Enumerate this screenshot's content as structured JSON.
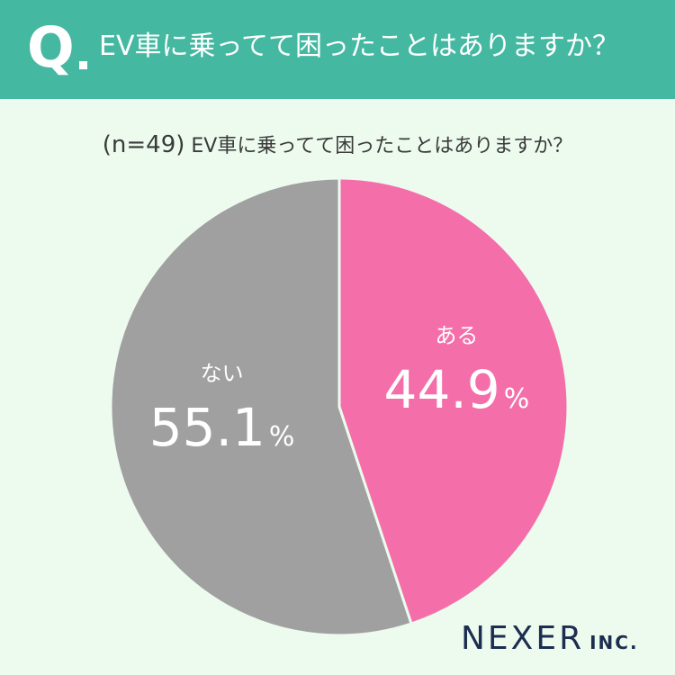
{
  "header": {
    "q_mark": "Q",
    "question": "EV車に乗ってて困ったことはありますか？"
  },
  "subtitle": {
    "n_label": "(n=49)",
    "question": "EV車に乗ってて困ったことはありますか？"
  },
  "chart_data": {
    "type": "pie",
    "title": "EV車に乗ってて困ったことはありますか？",
    "sample_size": 49,
    "unit": "%",
    "slices": [
      {
        "label": "ある",
        "value": 44.9,
        "value_text": "44.9",
        "color": "#f46fa9"
      },
      {
        "label": "ない",
        "value": 55.1,
        "value_text": "55.1",
        "color": "#a0a0a0"
      }
    ]
  },
  "colors": {
    "header_bg": "#45b8a2",
    "page_bg": "#ecfbee",
    "logo": "#1d2d50"
  },
  "logo": {
    "main": "NEXER",
    "suffix": "INC."
  }
}
